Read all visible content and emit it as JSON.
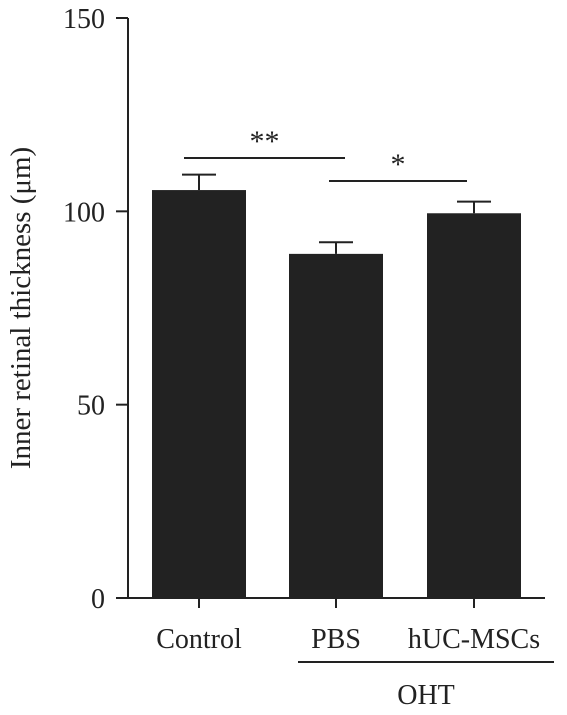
{
  "chart_data": {
    "type": "bar",
    "categories": [
      "Control",
      "PBS",
      "hUC-MSCs"
    ],
    "values": [
      105.5,
      89,
      99.5
    ],
    "errors": [
      4,
      3,
      3
    ],
    "ylabel": "Inner retinal thickness (μm)",
    "ylim": [
      0,
      150
    ],
    "yticks": [
      0,
      50,
      100,
      150
    ],
    "group_label": "OHT",
    "group_members": [
      "PBS",
      "hUC-MSCs"
    ],
    "significance": [
      {
        "from": "Control",
        "to": "PBS",
        "label": "**"
      },
      {
        "from": "PBS",
        "to": "hUC-MSCs",
        "label": "*"
      }
    ],
    "grid": false,
    "colors": {
      "bar": "#222222",
      "axis": "#222222"
    }
  }
}
